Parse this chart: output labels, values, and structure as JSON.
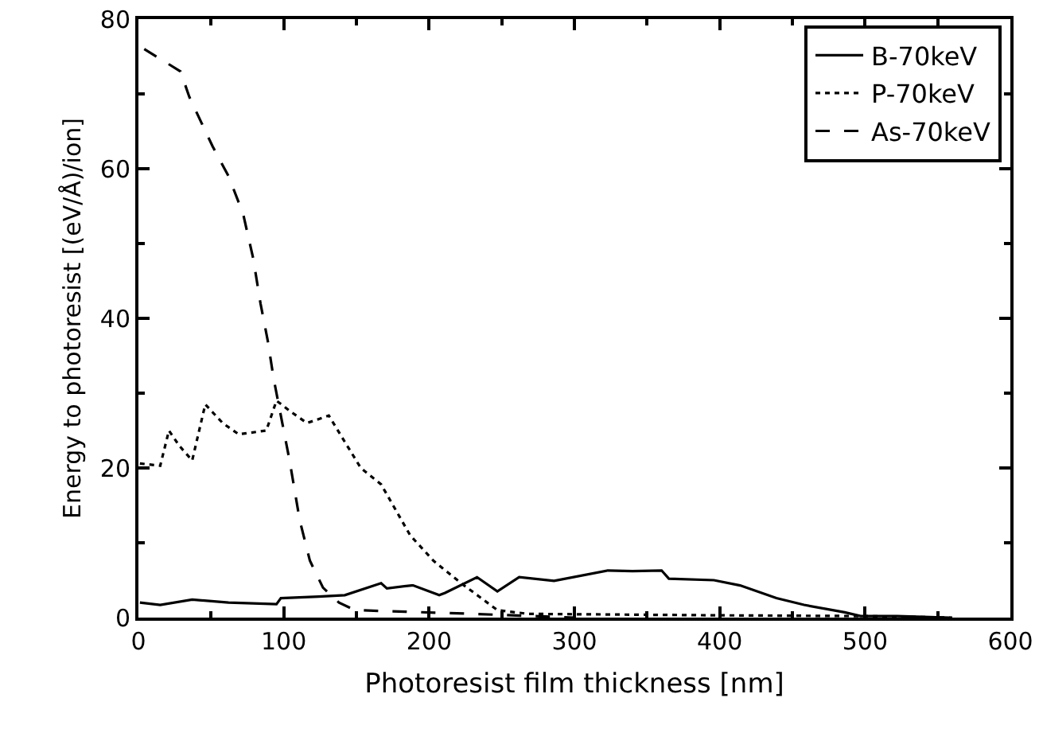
{
  "chart_data": {
    "type": "line",
    "xlabel": "Photoresist film thickness [nm]",
    "ylabel": "Energy to photoresist [(eV/Å)/ion]",
    "xlim": [
      0,
      600
    ],
    "ylim": [
      0,
      80
    ],
    "xticks": [
      0,
      100,
      200,
      300,
      400,
      500,
      600
    ],
    "yticks": [
      0,
      20,
      40,
      60,
      80
    ],
    "grid": false,
    "legend": "top right",
    "marker": "none",
    "series": [
      {
        "name": "B-70keV",
        "color": "#000000",
        "line_style": "solid",
        "x": [
          1,
          15,
          37,
          62,
          95,
          98,
          124,
          142,
          167,
          171,
          188,
          189,
          207,
          211,
          233,
          247,
          262,
          286,
          323,
          340,
          360,
          365,
          396,
          414,
          439,
          458,
          486,
          497,
          522,
          558
        ],
        "values": [
          2,
          1.7,
          2.4,
          2,
          1.8,
          2.6,
          2.8,
          3,
          4.6,
          3.9,
          4.3,
          4.3,
          3,
          3.3,
          5.4,
          3.5,
          5.4,
          4.9,
          6.3,
          6.2,
          6.3,
          5.2,
          5,
          4.3,
          2.6,
          1.7,
          0.7,
          0.2,
          0.2,
          0
        ]
      },
      {
        "name": "P-70keV",
        "color": "#000000",
        "line_style": "dotted",
        "x": [
          1,
          15,
          21,
          28,
          37,
          46,
          58,
          69,
          88,
          95,
          105,
          116,
          131,
          142,
          153,
          167,
          187,
          203,
          222,
          247,
          268,
          400,
          500,
          560
        ],
        "values": [
          20.6,
          20.3,
          25,
          23,
          21,
          28.5,
          26,
          24.5,
          25,
          29,
          27.5,
          26,
          27,
          23.5,
          20,
          17.8,
          11,
          7.6,
          4.6,
          1,
          0.5,
          0.3,
          0.2,
          0
        ]
      },
      {
        "name": "As-70keV",
        "color": "#000000",
        "line_style": "dashed",
        "x": [
          4,
          29,
          35,
          51,
          62,
          72,
          79,
          84,
          89,
          93,
          99,
          104,
          111,
          118,
          127,
          138,
          149,
          230,
          300
        ],
        "values": [
          76,
          73,
          69.6,
          63,
          59,
          54,
          48,
          42,
          37,
          32,
          26,
          21,
          13,
          7.6,
          4,
          2,
          1,
          0.5,
          0
        ]
      }
    ]
  }
}
